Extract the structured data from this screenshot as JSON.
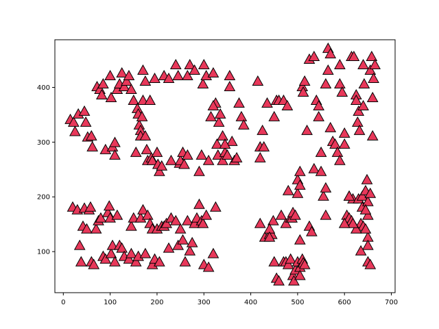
{
  "chart_data": {
    "type": "scatter",
    "title": "",
    "xlabel": "",
    "ylabel": "",
    "xlim": [
      -18,
      708
    ],
    "ylim": [
      25,
      487
    ],
    "grid": false,
    "marker": "triangle-up",
    "colors": {
      "marker_fill": "#e8385a",
      "marker_edge": "#000000"
    },
    "x_ticks": [
      0,
      100,
      200,
      300,
      400,
      500,
      600,
      700
    ],
    "y_ticks": [
      100,
      200,
      300,
      400
    ],
    "x_tick_labels": [
      "0",
      "100",
      "200",
      "300",
      "400",
      "500",
      "600",
      "700"
    ],
    "y_tick_labels": [
      "100",
      "200",
      "300",
      "400"
    ],
    "series": [
      {
        "points": [
          [
            15,
            340
          ],
          [
            22,
            335
          ],
          [
            25,
            318
          ],
          [
            32,
            350
          ],
          [
            45,
            355
          ],
          [
            48,
            335
          ],
          [
            52,
            308
          ],
          [
            60,
            310
          ],
          [
            62,
            290
          ],
          [
            72,
            400
          ],
          [
            78,
            395
          ],
          [
            82,
            385
          ],
          [
            85,
            405
          ],
          [
            90,
            285
          ],
          [
            100,
            420
          ],
          [
            102,
            380
          ],
          [
            105,
            290
          ],
          [
            110,
            298
          ],
          [
            110,
            275
          ],
          [
            115,
            395
          ],
          [
            120,
            405
          ],
          [
            125,
            425
          ],
          [
            130,
            400
          ],
          [
            135,
            410
          ],
          [
            140,
            420
          ],
          [
            145,
            395
          ],
          [
            150,
            375
          ],
          [
            155,
            280
          ],
          [
            158,
            360
          ],
          [
            160,
            350
          ],
          [
            162,
            330
          ],
          [
            165,
            320
          ],
          [
            165,
            310
          ],
          [
            168,
            345
          ],
          [
            170,
            375
          ],
          [
            170,
            430
          ],
          [
            175,
            410
          ],
          [
            175,
            310
          ],
          [
            178,
            285
          ],
          [
            180,
            265
          ],
          [
            185,
            375
          ],
          [
            188,
            270
          ],
          [
            190,
            265
          ],
          [
            195,
            415
          ],
          [
            200,
            280
          ],
          [
            202,
            258
          ],
          [
            205,
            245
          ],
          [
            210,
            255
          ],
          [
            215,
            420
          ],
          [
            225,
            415
          ],
          [
            230,
            265
          ],
          [
            240,
            440
          ],
          [
            245,
            420
          ],
          [
            248,
            260
          ],
          [
            250,
            265
          ],
          [
            255,
            280
          ],
          [
            258,
            258
          ],
          [
            265,
            275
          ],
          [
            265,
            420
          ],
          [
            270,
            440
          ],
          [
            280,
            430
          ],
          [
            290,
            245
          ],
          [
            295,
            275
          ],
          [
            298,
            405
          ],
          [
            300,
            440
          ],
          [
            305,
            420
          ],
          [
            310,
            265
          ],
          [
            315,
            345
          ],
          [
            320,
            425
          ],
          [
            325,
            370
          ],
          [
            330,
            275
          ],
          [
            332,
            335
          ],
          [
            335,
            350
          ],
          [
            340,
            265
          ],
          [
            345,
            280
          ],
          [
            350,
            275
          ],
          [
            355,
            420
          ],
          [
            355,
            400
          ],
          [
            360,
            300
          ],
          [
            365,
            265
          ],
          [
            370,
            270
          ],
          [
            375,
            370
          ],
          [
            380,
            345
          ],
          [
            385,
            330
          ],
          [
            320,
            365
          ],
          [
            328,
            295
          ],
          [
            340,
            310
          ],
          [
            345,
            295
          ],
          [
            20,
            180
          ],
          [
            30,
            175
          ],
          [
            35,
            110
          ],
          [
            38,
            80
          ],
          [
            42,
            145
          ],
          [
            45,
            178
          ],
          [
            50,
            140
          ],
          [
            55,
            175
          ],
          [
            58,
            180
          ],
          [
            60,
            80
          ],
          [
            65,
            75
          ],
          [
            70,
            140
          ],
          [
            75,
            155
          ],
          [
            80,
            160
          ],
          [
            85,
            90
          ],
          [
            90,
            85
          ],
          [
            95,
            170
          ],
          [
            98,
            182
          ],
          [
            100,
            160
          ],
          [
            102,
            95
          ],
          [
            105,
            110
          ],
          [
            110,
            80
          ],
          [
            115,
            165
          ],
          [
            120,
            110
          ],
          [
            125,
            105
          ],
          [
            130,
            90
          ],
          [
            140,
            85
          ],
          [
            145,
            95
          ],
          [
            145,
            145
          ],
          [
            150,
            160
          ],
          [
            155,
            80
          ],
          [
            160,
            90
          ],
          [
            165,
            160
          ],
          [
            170,
            175
          ],
          [
            175,
            95
          ],
          [
            180,
            165
          ],
          [
            185,
            150
          ],
          [
            190,
            140
          ],
          [
            190,
            75
          ],
          [
            195,
            85
          ],
          [
            200,
            140
          ],
          [
            205,
            80
          ],
          [
            210,
            145
          ],
          [
            215,
            145
          ],
          [
            220,
            150
          ],
          [
            225,
            105
          ],
          [
            230,
            160
          ],
          [
            240,
            155
          ],
          [
            245,
            110
          ],
          [
            250,
            140
          ],
          [
            255,
            120
          ],
          [
            260,
            80
          ],
          [
            265,
            155
          ],
          [
            270,
            100
          ],
          [
            275,
            115
          ],
          [
            280,
            150
          ],
          [
            285,
            160
          ],
          [
            290,
            185
          ],
          [
            295,
            155
          ],
          [
            298,
            150
          ],
          [
            300,
            75
          ],
          [
            305,
            165
          ],
          [
            310,
            70
          ],
          [
            320,
            95
          ],
          [
            325,
            180
          ],
          [
            415,
            410
          ],
          [
            420,
            290
          ],
          [
            420,
            270
          ],
          [
            425,
            320
          ],
          [
            428,
            290
          ],
          [
            430,
            125
          ],
          [
            435,
            370
          ],
          [
            440,
            130
          ],
          [
            445,
            130
          ],
          [
            448,
            155
          ],
          [
            450,
            345
          ],
          [
            455,
            375
          ],
          [
            460,
            375
          ],
          [
            465,
            165
          ],
          [
            470,
            375
          ],
          [
            475,
            150
          ],
          [
            478,
            365
          ],
          [
            480,
            210
          ],
          [
            485,
            160
          ],
          [
            488,
            160
          ],
          [
            490,
            170
          ],
          [
            495,
            165
          ],
          [
            500,
            205
          ],
          [
            500,
            230
          ],
          [
            505,
            245
          ],
          [
            505,
            220
          ],
          [
            505,
            120
          ],
          [
            510,
            400
          ],
          [
            512,
            390
          ],
          [
            515,
            410
          ],
          [
            520,
            320
          ],
          [
            525,
            450
          ],
          [
            525,
            145
          ],
          [
            530,
            135
          ],
          [
            535,
            455
          ],
          [
            535,
            250
          ],
          [
            540,
            375
          ],
          [
            545,
            365
          ],
          [
            545,
            345
          ],
          [
            550,
            245
          ],
          [
            550,
            280
          ],
          [
            555,
            200
          ],
          [
            560,
            165
          ],
          [
            560,
            215
          ],
          [
            560,
            405
          ],
          [
            565,
            430
          ],
          [
            565,
            470
          ],
          [
            570,
            460
          ],
          [
            570,
            325
          ],
          [
            575,
            300
          ],
          [
            580,
            295
          ],
          [
            585,
            280
          ],
          [
            590,
            265
          ],
          [
            590,
            440
          ],
          [
            590,
            405
          ],
          [
            595,
            390
          ],
          [
            600,
            315
          ],
          [
            600,
            295
          ],
          [
            605,
            165
          ],
          [
            610,
            200
          ],
          [
            610,
            160
          ],
          [
            615,
            155
          ],
          [
            615,
            455
          ],
          [
            618,
            195
          ],
          [
            620,
            455
          ],
          [
            625,
            385
          ],
          [
            625,
            375
          ],
          [
            628,
            335
          ],
          [
            630,
            195
          ],
          [
            630,
            355
          ],
          [
            632,
            320
          ],
          [
            635,
            150
          ],
          [
            638,
            200
          ],
          [
            638,
            180
          ],
          [
            640,
            440
          ],
          [
            640,
            365
          ],
          [
            642,
            405
          ],
          [
            645,
            210
          ],
          [
            648,
            230
          ],
          [
            650,
            190
          ],
          [
            650,
            125
          ],
          [
            650,
            110
          ],
          [
            650,
            80
          ],
          [
            655,
            75
          ],
          [
            655,
            430
          ],
          [
            658,
            455
          ],
          [
            660,
            310
          ],
          [
            660,
            380
          ],
          [
            662,
            415
          ],
          [
            665,
            440
          ],
          [
            420,
            150
          ],
          [
            440,
            140
          ],
          [
            440,
            125
          ],
          [
            450,
            80
          ],
          [
            455,
            50
          ],
          [
            460,
            45
          ],
          [
            470,
            80
          ],
          [
            475,
            80
          ],
          [
            480,
            75
          ],
          [
            485,
            85
          ],
          [
            490,
            55
          ],
          [
            492,
            45
          ],
          [
            495,
            65
          ],
          [
            500,
            80
          ],
          [
            505,
            70
          ],
          [
            505,
            55
          ],
          [
            510,
            85
          ],
          [
            512,
            78
          ],
          [
            515,
            75
          ],
          [
            640,
            145
          ],
          [
            635,
            100
          ],
          [
            645,
            140
          ],
          [
            650,
            165
          ],
          [
            625,
            140
          ],
          [
            610,
            200
          ],
          [
            655,
            205
          ],
          [
            645,
            175
          ],
          [
            618,
            150
          ],
          [
            600,
            150
          ]
        ]
      }
    ]
  }
}
